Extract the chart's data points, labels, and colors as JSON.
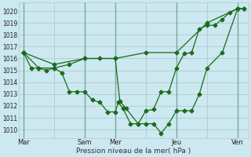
{
  "bg_color": "#cce8f0",
  "line_color": "#1a6b1a",
  "grid_color": "#b0cccc",
  "xlabel": "Pression niveau de la mer( hPa )",
  "ylim": [
    1009.3,
    1020.7
  ],
  "yticks": [
    1010,
    1011,
    1012,
    1013,
    1014,
    1015,
    1016,
    1017,
    1018,
    1019,
    1020
  ],
  "xtick_labels": [
    "Mar",
    "",
    "Sam",
    "Mer",
    "",
    "Jeu",
    "",
    "Ven"
  ],
  "xtick_positions": [
    0,
    1,
    2,
    3,
    4,
    5,
    6,
    7
  ],
  "vgrid_positions": [
    0,
    1,
    2,
    3,
    4,
    5,
    6,
    7
  ],
  "line_upper_x": [
    0,
    1,
    2,
    3,
    4,
    5,
    6,
    7
  ],
  "line_upper_y": [
    1016.5,
    1015.5,
    1016.0,
    1016.0,
    1016.5,
    1016.5,
    1019.0,
    1020.2
  ],
  "line_lower_x": [
    0,
    0.25,
    0.5,
    0.75,
    1.0,
    1.25,
    1.5,
    1.75,
    2.0,
    2.25,
    2.5,
    2.75,
    3.0,
    3.1,
    3.25,
    3.5,
    3.75,
    4.0,
    4.25,
    4.5,
    4.75,
    5.0,
    5.25,
    5.5,
    5.75,
    6.0,
    6.25,
    6.5,
    6.75,
    7.0,
    7.2
  ],
  "line_lower_y": [
    1016.5,
    1015.2,
    1015.2,
    1015.0,
    1015.2,
    1014.8,
    1013.2,
    1013.2,
    1013.2,
    1012.5,
    1012.3,
    1011.5,
    1011.5,
    1012.3,
    1011.8,
    1010.5,
    1010.5,
    1011.6,
    1011.7,
    1013.2,
    1013.2,
    1015.2,
    1016.4,
    1016.5,
    1018.5,
    1018.8,
    1018.8,
    1019.3,
    1019.9,
    1020.2,
    1020.2
  ],
  "line_mid_x": [
    0,
    0.5,
    1.0,
    1.5,
    2.0,
    2.5,
    3.0,
    3.15,
    3.35,
    3.75,
    4.0,
    4.25,
    4.5,
    4.75,
    5.0,
    5.25,
    5.5,
    5.75,
    6.0,
    6.5,
    7.0,
    7.2
  ],
  "line_mid_y": [
    1016.5,
    1015.2,
    1015.2,
    1015.5,
    1016.0,
    1016.0,
    1016.0,
    1012.4,
    1011.8,
    1010.5,
    1010.5,
    1010.5,
    1009.7,
    1010.5,
    1011.6,
    1011.6,
    1011.6,
    1013.0,
    1015.2,
    1016.5,
    1020.2,
    1020.2
  ]
}
